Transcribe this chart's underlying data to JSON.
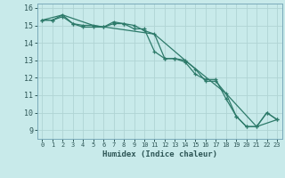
{
  "xlabel": "Humidex (Indice chaleur)",
  "ylabel": "",
  "bg_color": "#c8eaea",
  "grid_color": "#b0d4d4",
  "line_color": "#2d7a6a",
  "xlim": [
    -0.5,
    23.5
  ],
  "ylim": [
    8.5,
    16.25
  ],
  "yticks": [
    9,
    10,
    11,
    12,
    13,
    14,
    15,
    16
  ],
  "xticks": [
    0,
    1,
    2,
    3,
    4,
    5,
    6,
    7,
    8,
    9,
    10,
    11,
    12,
    13,
    14,
    15,
    16,
    17,
    18,
    19,
    20,
    21,
    22,
    23
  ],
  "series1_x": [
    0,
    1,
    2,
    3,
    4,
    5,
    6,
    7,
    8,
    9,
    10,
    11,
    12,
    13,
    14,
    15,
    16,
    17,
    18,
    19,
    20,
    21,
    22,
    23
  ],
  "series1_y": [
    15.3,
    15.3,
    15.5,
    15.1,
    14.9,
    14.9,
    14.9,
    15.1,
    15.1,
    15.0,
    14.7,
    14.5,
    13.1,
    13.1,
    13.0,
    12.5,
    11.8,
    11.8,
    11.1,
    9.8,
    9.2,
    9.2,
    10.0,
    9.6
  ],
  "series2_x": [
    0,
    1,
    2,
    3,
    4,
    5,
    6,
    7,
    8,
    9,
    10,
    11,
    12,
    13,
    14,
    15,
    16,
    17,
    18,
    19,
    20,
    21,
    22,
    23
  ],
  "series2_y": [
    15.3,
    15.3,
    15.6,
    15.1,
    15.0,
    15.0,
    14.9,
    15.2,
    15.1,
    14.8,
    14.8,
    13.5,
    13.1,
    13.1,
    12.9,
    12.2,
    11.9,
    11.9,
    10.8,
    9.8,
    9.2,
    9.2,
    10.0,
    9.6
  ],
  "series3_x": [
    0,
    2,
    5,
    11,
    14,
    18,
    21,
    23
  ],
  "series3_y": [
    15.3,
    15.6,
    15.0,
    14.5,
    13.0,
    11.1,
    9.2,
    9.6
  ]
}
